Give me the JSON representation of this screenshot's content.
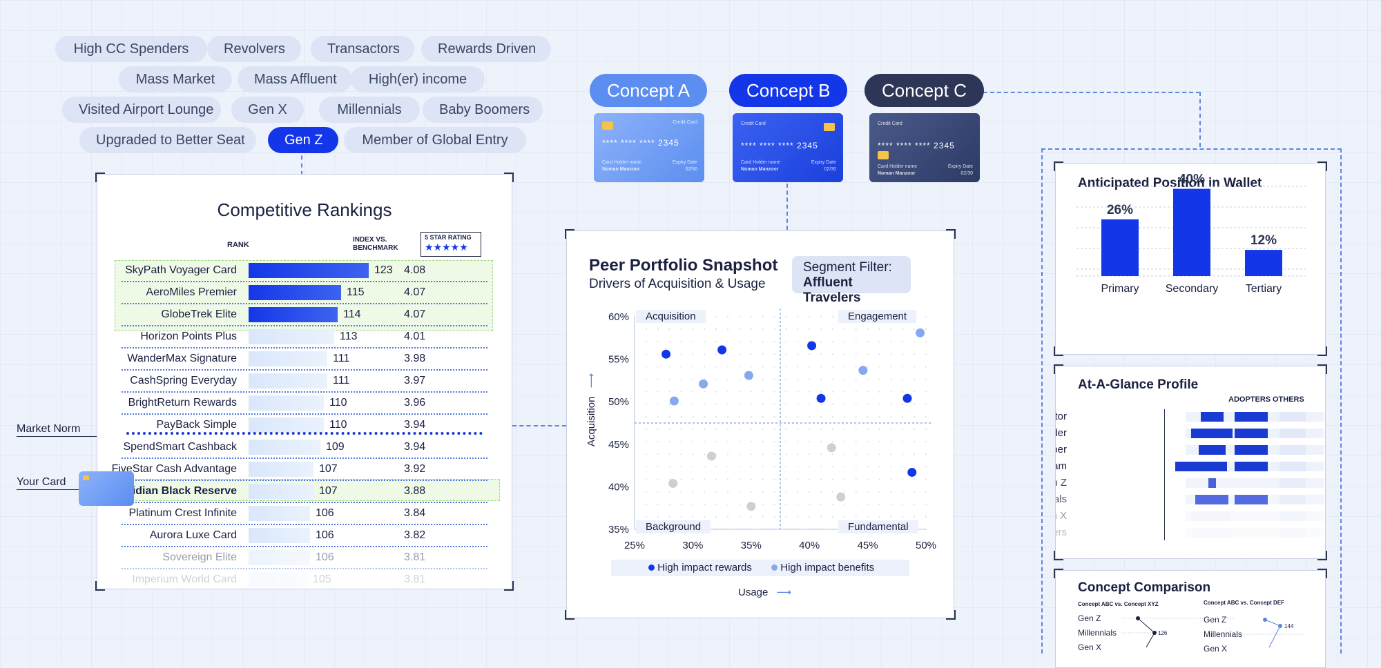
{
  "segments": [
    {
      "label": "High CC Spenders",
      "active": false
    },
    {
      "label": "Revolvers",
      "active": false
    },
    {
      "label": "Transactors",
      "active": false
    },
    {
      "label": "Rewards Driven",
      "active": false
    },
    {
      "label": "Mass Market",
      "active": false
    },
    {
      "label": "Mass Affluent",
      "active": false
    },
    {
      "label": "High(er) income",
      "active": false
    },
    {
      "label": "Visited Airport Lounge",
      "active": false
    },
    {
      "label": "Gen X",
      "active": false
    },
    {
      "label": "Millennials",
      "active": false
    },
    {
      "label": "Baby Boomers",
      "active": false
    },
    {
      "label": "Upgraded to Better Seat",
      "active": false
    },
    {
      "label": "Gen Z",
      "active": true
    },
    {
      "label": "Member of Global Entry",
      "active": false
    }
  ],
  "concepts": [
    {
      "label": "Concept A",
      "color": "#5b8ef0"
    },
    {
      "label": "Concept B",
      "color": "#1337e8"
    },
    {
      "label": "Concept C",
      "color": "#2d3656"
    }
  ],
  "card": {
    "title": "Credit Card",
    "number": "**** **** **** 2345",
    "holder_label": "Card Holder name",
    "holder": "Noman Manzoor",
    "expiry_label": "Expiry Date",
    "expiry": "02/30"
  },
  "rankings": {
    "title": "Competitive Rankings",
    "col_rank": "RANK",
    "col_index": "INDEX VS. BENCHMARK",
    "col_rating": "5 STAR RATING",
    "stars": "★★★★★",
    "market_norm": "Market Norm",
    "your_card": "Your Card",
    "rows": [
      {
        "name": "SkyPath Voyager Card",
        "index": 123,
        "rating": "4.08",
        "tier": "top"
      },
      {
        "name": "AeroMiles Premier",
        "index": 115,
        "rating": "4.07",
        "tier": "top"
      },
      {
        "name": "GlobeTrek Elite",
        "index": 114,
        "rating": "4.07",
        "tier": "top"
      },
      {
        "name": "Horizon Points Plus",
        "index": 113,
        "rating": "4.01",
        "tier": "light"
      },
      {
        "name": "WanderMax Signature",
        "index": 111,
        "rating": "3.98",
        "tier": "light"
      },
      {
        "name": "CashSpring Everyday",
        "index": 111,
        "rating": "3.97",
        "tier": "light"
      },
      {
        "name": "BrightReturn Rewards",
        "index": 110,
        "rating": "3.96",
        "tier": "light"
      },
      {
        "name": "PayBack Simple",
        "index": 110,
        "rating": "3.94",
        "tier": "light"
      },
      {
        "name": "SpendSmart Cashback",
        "index": 109,
        "rating": "3.94",
        "tier": "light"
      },
      {
        "name": "FiveStar Cash Advantage",
        "index": 107,
        "rating": "3.92",
        "tier": "light"
      },
      {
        "name": "Obsidian Black Reserve",
        "index": 107,
        "rating": "3.88",
        "tier": "yours"
      },
      {
        "name": "Platinum Crest Infinite",
        "index": 106,
        "rating": "3.84",
        "tier": "light"
      },
      {
        "name": "Aurora Luxe Card",
        "index": 106,
        "rating": "3.82",
        "tier": "light"
      },
      {
        "name": "Sovereign Elite",
        "index": 106,
        "rating": "3.81",
        "tier": "faded"
      },
      {
        "name": "Imperium World Card",
        "index": 105,
        "rating": "3.81",
        "tier": "faded"
      }
    ]
  },
  "snapshot": {
    "title": "Peer Portfolio Snapshot",
    "subtitle": "Drivers of Acquisition & Usage",
    "filter_label": "Segment Filter:",
    "filter_value": "Affluent Travelers",
    "q_tl": "Acquisition",
    "q_tr": "Engagement",
    "q_bl": "Background",
    "q_br": "Fundamental",
    "legend_a": "High impact rewards",
    "legend_b": "High impact benefits",
    "xlabel": "Usage",
    "ylabel": "Acquisition"
  },
  "chart_data": [
    {
      "type": "scatter",
      "title": "Peer Portfolio Snapshot",
      "xlabel": "Usage",
      "ylabel": "Acquisition",
      "xlim": [
        25,
        50
      ],
      "ylim": [
        35,
        60
      ],
      "x_ticks": [
        "25%",
        "30%",
        "35%",
        "40%",
        "45%",
        "50%"
      ],
      "y_ticks": [
        "60%",
        "55%",
        "50%",
        "45%",
        "40%",
        "35%"
      ],
      "series": [
        {
          "name": "High impact rewards",
          "color": "#1337e8",
          "points": [
            [
              27.7,
              55.6
            ],
            [
              32.5,
              56.1
            ],
            [
              40.2,
              56.6
            ],
            [
              41,
              50.4
            ],
            [
              48.4,
              50.4
            ],
            [
              48.8,
              41.7
            ]
          ]
        },
        {
          "name": "High impact benefits",
          "color": "#86a8f0",
          "points": [
            [
              28.4,
              50.1
            ],
            [
              30.9,
              52.1
            ],
            [
              34.8,
              53.1
            ],
            [
              44.6,
              53.7
            ],
            [
              49.5,
              58.1
            ]
          ]
        },
        {
          "name": "Other",
          "color": "#cfcfcf",
          "points": [
            [
              28.3,
              40.4
            ],
            [
              31.6,
              43.6
            ],
            [
              41.9,
              44.6
            ],
            [
              42.7,
              38.8
            ],
            [
              35,
              37.7
            ]
          ]
        }
      ]
    },
    {
      "type": "bar",
      "title": "Anticipated Position in Wallet",
      "categories": [
        "Primary",
        "Secondary",
        "Tertiary"
      ],
      "values": [
        26,
        40,
        12
      ],
      "labels": [
        "26%",
        "40%",
        "12%"
      ],
      "ylim": [
        0,
        50
      ]
    }
  ],
  "wallet": {
    "title": "Anticipated Position in Wallet"
  },
  "profile": {
    "title": "At-A-Glance Profile",
    "col_adopters": "ADOPTERS",
    "col_others": "OTHERS",
    "rows": [
      {
        "label": "Frequent Visitor",
        "a": 0.55,
        "b": 0.68,
        "fade": 1
      },
      {
        "label": "High Spender",
        "a": 1.0,
        "b": 0.68,
        "fade": 1
      },
      {
        "label": "Loyalty Member",
        "a": 0.65,
        "b": 0.68,
        "fade": 1
      },
      {
        "label": "Loyalty Program",
        "a": 1.25,
        "b": 0.68,
        "fade": 1
      },
      {
        "label": "Gen Z",
        "a": 0.18,
        "b": 0.0,
        "fade": 0.8
      },
      {
        "label": "Millennials",
        "a": 0.8,
        "b": 0.68,
        "fade": 0.75
      },
      {
        "label": "Gen X",
        "a": 0.0,
        "b": 0.0,
        "fade": 0.45
      },
      {
        "label": "Baby Boomers",
        "a": 0.0,
        "b": 0.0,
        "fade": 0.3
      }
    ]
  },
  "comparison": {
    "title": "Concept Comparison",
    "left_sub": "Concept ABC vs. Concept XYZ",
    "right_sub": "Concept ABC vs. Concept DEF",
    "left_rows": [
      "Gen Z",
      "Millennials",
      "Gen X"
    ],
    "right_rows": [
      "Gen Z",
      "Millennials",
      "Gen X"
    ],
    "left_value": "126",
    "right_value": "144"
  }
}
